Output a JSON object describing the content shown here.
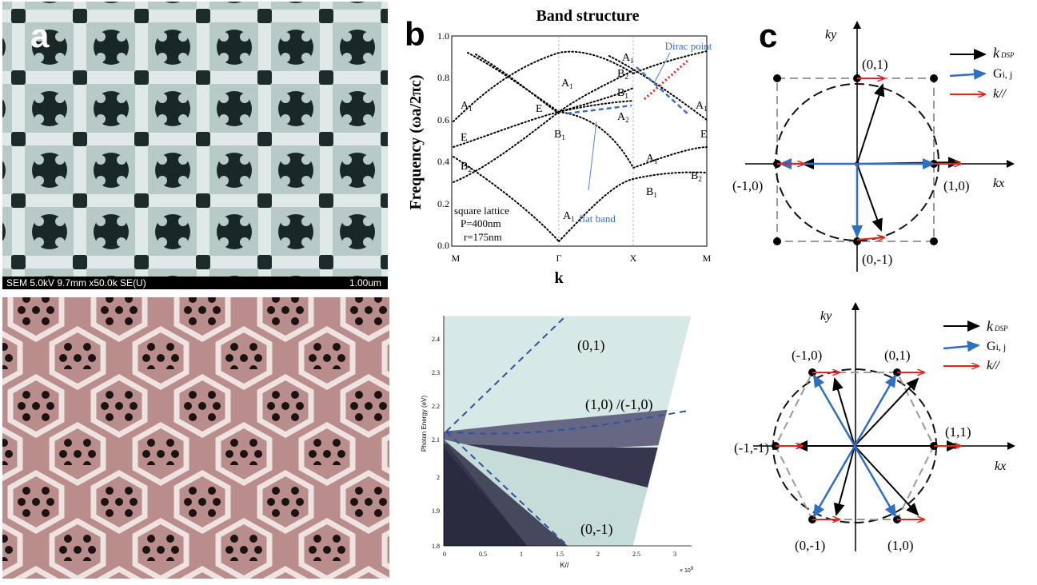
{
  "panel_labels": {
    "a": "a",
    "b": "b",
    "c": "c"
  },
  "sem": {
    "info": "SEM 5.0kV 9.7mm x50.0k SE(U)",
    "scale": "1.00um"
  },
  "band": {
    "title": "Band structure",
    "ylabel": "Frequency (ωa/2πc)",
    "xlabel": "k",
    "yticks": [
      "1.0",
      "0.8",
      "0.6",
      "0.4",
      "0.2",
      "0.0"
    ],
    "xticks": [
      "M",
      "Γ",
      "X",
      "M"
    ],
    "lattice": [
      "square lattice",
      "P=400nm",
      "r=175nm"
    ],
    "dirac": "Dirac point",
    "flat": "flat band",
    "mode_labels": {
      "a1_left": "A",
      "e_left": "E",
      "b2_left": "B",
      "a1_mid": "A",
      "e_mid": "E",
      "b1_mid": "B",
      "a2_mid": "A",
      "a1_low": "A",
      "a1_top": "A",
      "b2_top": "B",
      "b1_top": "B",
      "a1_right": "A",
      "e_right": "E",
      "a1_x": "A",
      "b1_x": "B",
      "b2_right": "B",
      "sub1": "1",
      "sub2": "2"
    }
  },
  "dispersion": {
    "ylabel": "Photon Energy (eV)",
    "xlabel": "K//",
    "xexp": "× 10",
    "xexp_pow": "9",
    "yticks": [
      "2.4",
      "2.3",
      "2.2",
      "2.1",
      "2",
      "1.9",
      "1.8"
    ],
    "xticks": [
      "0",
      "0.5",
      "1",
      "1.5",
      "2",
      "2.5",
      "3"
    ],
    "labels": {
      "up": "(0,1)",
      "mid": "(1,0) /(-1,0)",
      "down": "(0,-1)"
    }
  },
  "square_diagram": {
    "ky": "ky",
    "kx": "kx",
    "p01": "(0,1)",
    "p10": "(1,0)",
    "pm10": "(-1,0)",
    "p0m1": "(0,-1)",
    "legend": {
      "kdsp": "k",
      "kdsp_sub": "DSP",
      "g": "G",
      "g_sub": "i, j",
      "kpar": "k//"
    },
    "colors": {
      "kdsp": "#000000",
      "g": "#2e6fc4",
      "kpar": "#e0281c"
    }
  },
  "hex_diagram": {
    "ky": "ky",
    "kx": "kx",
    "pm10": "(-1,0)",
    "p01": "(0,1)",
    "pm1m1": "(-1,-1)",
    "p11": "(1,1)",
    "p0m1": "(0,-1)",
    "p10": "(1,0)",
    "legend": {
      "kdsp": "k",
      "kdsp_sub": "DSP",
      "g": "G",
      "g_sub": "i, j",
      "kpar": "k//"
    }
  }
}
